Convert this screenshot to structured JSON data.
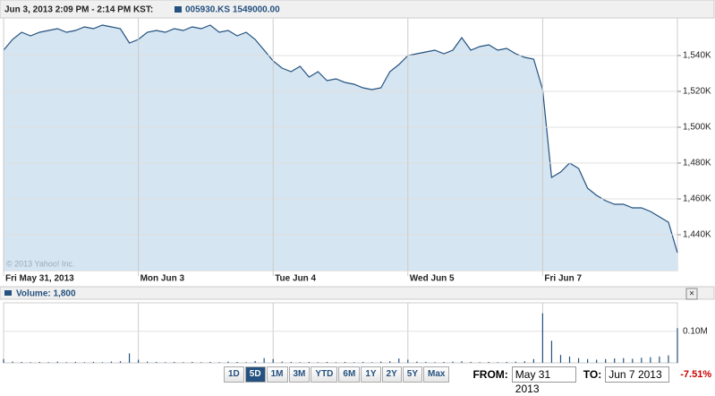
{
  "header": {
    "time_range": "Jun 3, 2013 2:09 PM - 2:14 PM KST:",
    "symbol_label": "005930.KS 1549000.00"
  },
  "watermark": "© 2013 Yahoo! Inc.",
  "chart_data": [
    {
      "type": "area",
      "color": "#24517f",
      "fill": "#d5e5f1",
      "grid": true,
      "xlim": [
        0,
        75
      ],
      "xticks": [
        {
          "value": 0,
          "label": "Fri May 31, 2013"
        },
        {
          "value": 15,
          "label": "Mon Jun 3"
        },
        {
          "value": 30,
          "label": "Tue Jun 4"
        },
        {
          "value": 45,
          "label": "Wed Jun 5"
        },
        {
          "value": 60,
          "label": "Fri Jun 7"
        }
      ],
      "ylim": [
        1420000,
        1561000
      ],
      "yticks": [
        {
          "value": 1440000,
          "label": "1,440K"
        },
        {
          "value": 1460000,
          "label": "1,460K"
        },
        {
          "value": 1480000,
          "label": "1,480K"
        },
        {
          "value": 1500000,
          "label": "1,500K"
        },
        {
          "value": 1520000,
          "label": "1,520K"
        },
        {
          "value": 1540000,
          "label": "1,540K"
        }
      ],
      "series": [
        {
          "name": "005930.KS",
          "values": [
            1543000,
            1549000,
            1553000,
            1551000,
            1553000,
            1554000,
            1555000,
            1553000,
            1554000,
            1556000,
            1555000,
            1557000,
            1556000,
            1555000,
            1547000,
            1549000,
            1553000,
            1554000,
            1553000,
            1555000,
            1554000,
            1556000,
            1555000,
            1557000,
            1553000,
            1554000,
            1551000,
            1553000,
            1549000,
            1543000,
            1537000,
            1533000,
            1531000,
            1534000,
            1528000,
            1531000,
            1526000,
            1527000,
            1525000,
            1524000,
            1522000,
            1521000,
            1522000,
            1531000,
            1535000,
            1540000,
            1541000,
            1542000,
            1543000,
            1541000,
            1543000,
            1550000,
            1543000,
            1545000,
            1546000,
            1543000,
            1544000,
            1541000,
            1539000,
            1538000,
            1521000,
            1472000,
            1475000,
            1480000,
            1477000,
            1466000,
            1462000,
            1459000,
            1457000,
            1457000,
            1455000,
            1455000,
            1453000,
            1450000,
            1447000,
            1430000
          ]
        }
      ]
    },
    {
      "type": "bar",
      "title": "Volume: 1,800",
      "color": "#24517f",
      "xlim": [
        0,
        75
      ],
      "ylim": [
        0,
        190000
      ],
      "yticks": [
        {
          "value": 100000,
          "label": "0.10M"
        }
      ],
      "values": [
        12000,
        4000,
        3000,
        2000,
        3000,
        2000,
        4000,
        2000,
        3000,
        2000,
        3000,
        2000,
        4000,
        5000,
        30000,
        10000,
        4000,
        3000,
        2000,
        3000,
        2000,
        3000,
        2000,
        3000,
        2000,
        4000,
        3000,
        2000,
        6000,
        15000,
        12000,
        4000,
        3000,
        2000,
        3000,
        2000,
        3000,
        2000,
        3000,
        2000,
        3000,
        2000,
        4000,
        5000,
        14000,
        10000,
        4000,
        3000,
        2000,
        3000,
        4000,
        5000,
        3000,
        2000,
        3000,
        2000,
        3000,
        4000,
        5000,
        12000,
        157000,
        70000,
        25000,
        20000,
        15000,
        12000,
        10000,
        12000,
        14000,
        15000,
        13000,
        16000,
        18000,
        20000,
        24000,
        110000
      ]
    }
  ],
  "controls": {
    "ranges": [
      "1D",
      "5D",
      "1M",
      "3M",
      "YTD",
      "6M",
      "1Y",
      "2Y",
      "5Y",
      "Max"
    ],
    "selected_range": "5D",
    "from_label": "FROM:",
    "from_value": "May 31 2013",
    "to_label": "TO:",
    "to_value": "Jun 7 2013",
    "change": "-7.51%",
    "close": "×"
  }
}
